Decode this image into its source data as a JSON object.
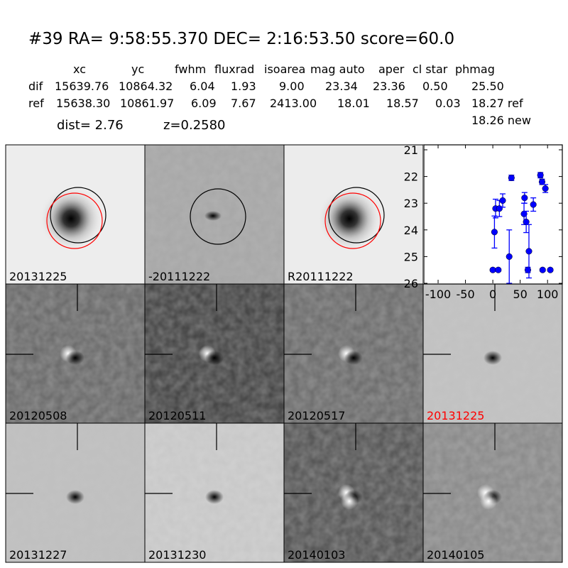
{
  "header": {
    "title": "#39   RA= 9:58:55.370 DEC= 2:16:53.50      score=60.0",
    "columns": [
      "xc",
      "yc",
      "fwhm",
      "fluxrad",
      "isoarea",
      "mag auto",
      "aper",
      "cl star",
      "phmag"
    ],
    "rows": [
      [
        "dif",
        "15639.76",
        "10864.32",
        "6.04",
        "1.93",
        "9.00",
        "23.34",
        "23.36",
        "0.50",
        "25.50"
      ],
      [
        "ref",
        "15638.30",
        "10861.97",
        "6.09",
        "7.67",
        "2413.00",
        "18.01",
        "18.57",
        "0.03",
        "18.27 ref"
      ]
    ],
    "phmag_new": "18.26 new",
    "dist": "dist=  2.76",
    "z": "z=0.2580"
  },
  "panels": [
    {
      "label": "20131225",
      "kind": "new"
    },
    {
      "label": "-20111222",
      "kind": "diff"
    },
    {
      "label": "R20111222",
      "kind": "ref"
    },
    {
      "label": "",
      "kind": "plot"
    },
    {
      "label": "20120508",
      "kind": "stamp"
    },
    {
      "label": "20120511",
      "kind": "stamp"
    },
    {
      "label": "20120517",
      "kind": "stamp"
    },
    {
      "label": "20131225",
      "kind": "stamp",
      "label_color": "#ff0000"
    },
    {
      "label": "20131227",
      "kind": "stamp"
    },
    {
      "label": "20131230",
      "kind": "stamp"
    },
    {
      "label": "20140103",
      "kind": "stamp"
    },
    {
      "label": "20140105",
      "kind": "stamp"
    }
  ],
  "chart_data": {
    "type": "scatter",
    "title": "",
    "xlabel": "",
    "ylabel": "",
    "xlim": [
      -126,
      127
    ],
    "ylim": [
      26,
      21
    ],
    "y_inverted": true,
    "xticks": [
      "-100",
      "-50",
      "0",
      "50",
      "100"
    ],
    "yticks": [
      "21",
      "22",
      "23",
      "24",
      "25",
      "26"
    ],
    "marker_color": "#0000ff",
    "points": [
      {
        "x": 0,
        "y": 25.5,
        "err": 0.05
      },
      {
        "x": 10,
        "y": 25.5,
        "err": 0.05
      },
      {
        "x": 3,
        "y": 24.08,
        "err": 0.6
      },
      {
        "x": 5,
        "y": 23.2,
        "err": 0.35
      },
      {
        "x": 12,
        "y": 23.2,
        "err": 0.3
      },
      {
        "x": 18,
        "y": 22.9,
        "err": 0.25
      },
      {
        "x": 30,
        "y": 25.0,
        "err": 1.0
      },
      {
        "x": 34,
        "y": 22.05,
        "err": 0.1
      },
      {
        "x": 57,
        "y": 23.4,
        "err": 0.4
      },
      {
        "x": 58,
        "y": 22.8,
        "err": 0.2
      },
      {
        "x": 61,
        "y": 23.7,
        "err": 0.4
      },
      {
        "x": 64,
        "y": 25.5,
        "err": 0.1
      },
      {
        "x": 66,
        "y": 24.8,
        "err": 1.0
      },
      {
        "x": 74,
        "y": 23.05,
        "err": 0.25
      },
      {
        "x": 87,
        "y": 21.95,
        "err": 0.1
      },
      {
        "x": 90,
        "y": 22.2,
        "err": 0.1
      },
      {
        "x": 91,
        "y": 25.5,
        "err": 0.05
      },
      {
        "x": 96,
        "y": 22.45,
        "err": 0.15
      },
      {
        "x": 105,
        "y": 25.5,
        "err": 0.05
      }
    ]
  }
}
